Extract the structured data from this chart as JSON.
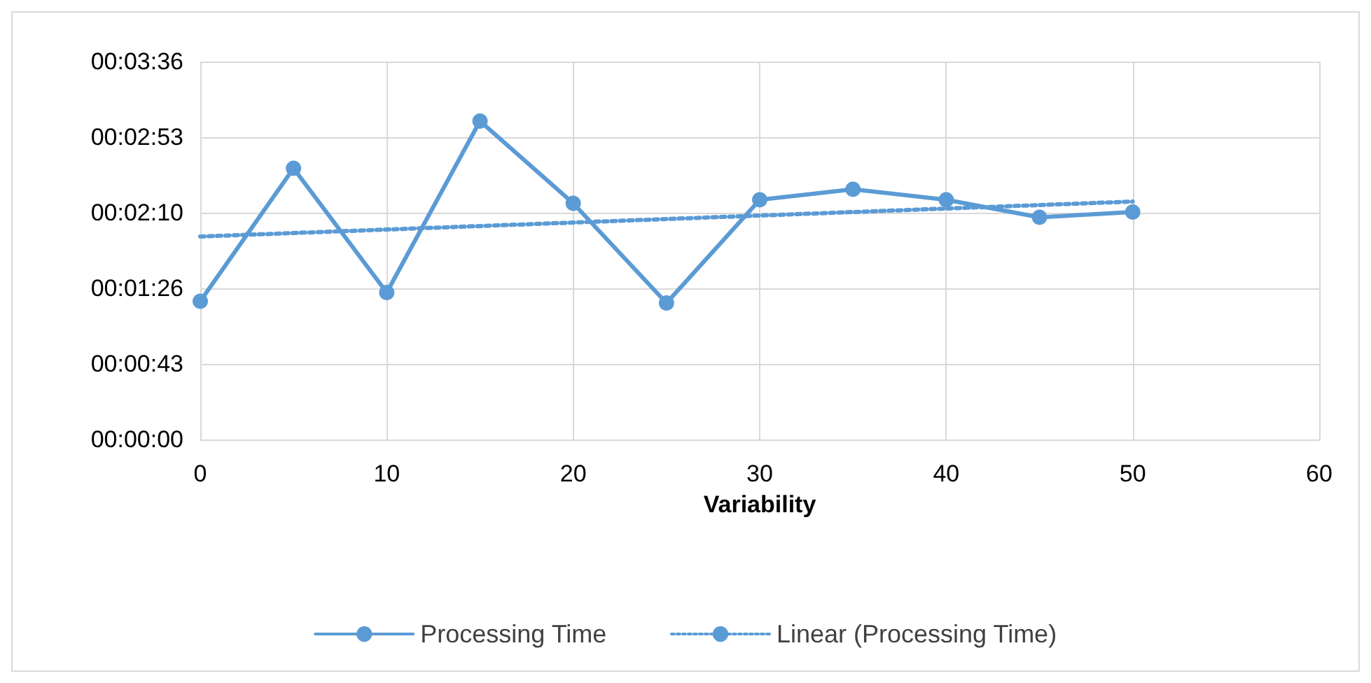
{
  "chart_data": {
    "type": "line",
    "xlabel": "Variability",
    "x": [
      0,
      5,
      10,
      15,
      20,
      25,
      30,
      35,
      40,
      45,
      50
    ],
    "series": [
      {
        "name": "Processing Time",
        "color": "#5b9bd5",
        "values": [
          79,
          155,
          84,
          182,
          135,
          78,
          137,
          143,
          137,
          127,
          130
        ],
        "marker": "circle",
        "line_style": "solid"
      },
      {
        "name": "Linear (Processing Time)",
        "color": "#5b9bd5",
        "type": "line",
        "x": [
          0,
          50
        ],
        "values": [
          116,
          136
        ],
        "marker": "none",
        "line_style": "dotted"
      }
    ],
    "xlim": [
      0,
      60
    ],
    "xticks": [
      0,
      10,
      20,
      30,
      40,
      50,
      60
    ],
    "ylim": [
      0,
      216
    ],
    "yticks": [
      {
        "value": 0,
        "label": "00:00:00"
      },
      {
        "value": 43.2,
        "label": "00:00:43"
      },
      {
        "value": 86.4,
        "label": "00:01:26"
      },
      {
        "value": 129.6,
        "label": "00:02:10"
      },
      {
        "value": 172.8,
        "label": "00:02:53"
      },
      {
        "value": 216,
        "label": "00:03:36"
      }
    ],
    "grid": true,
    "legend": "bottom"
  }
}
